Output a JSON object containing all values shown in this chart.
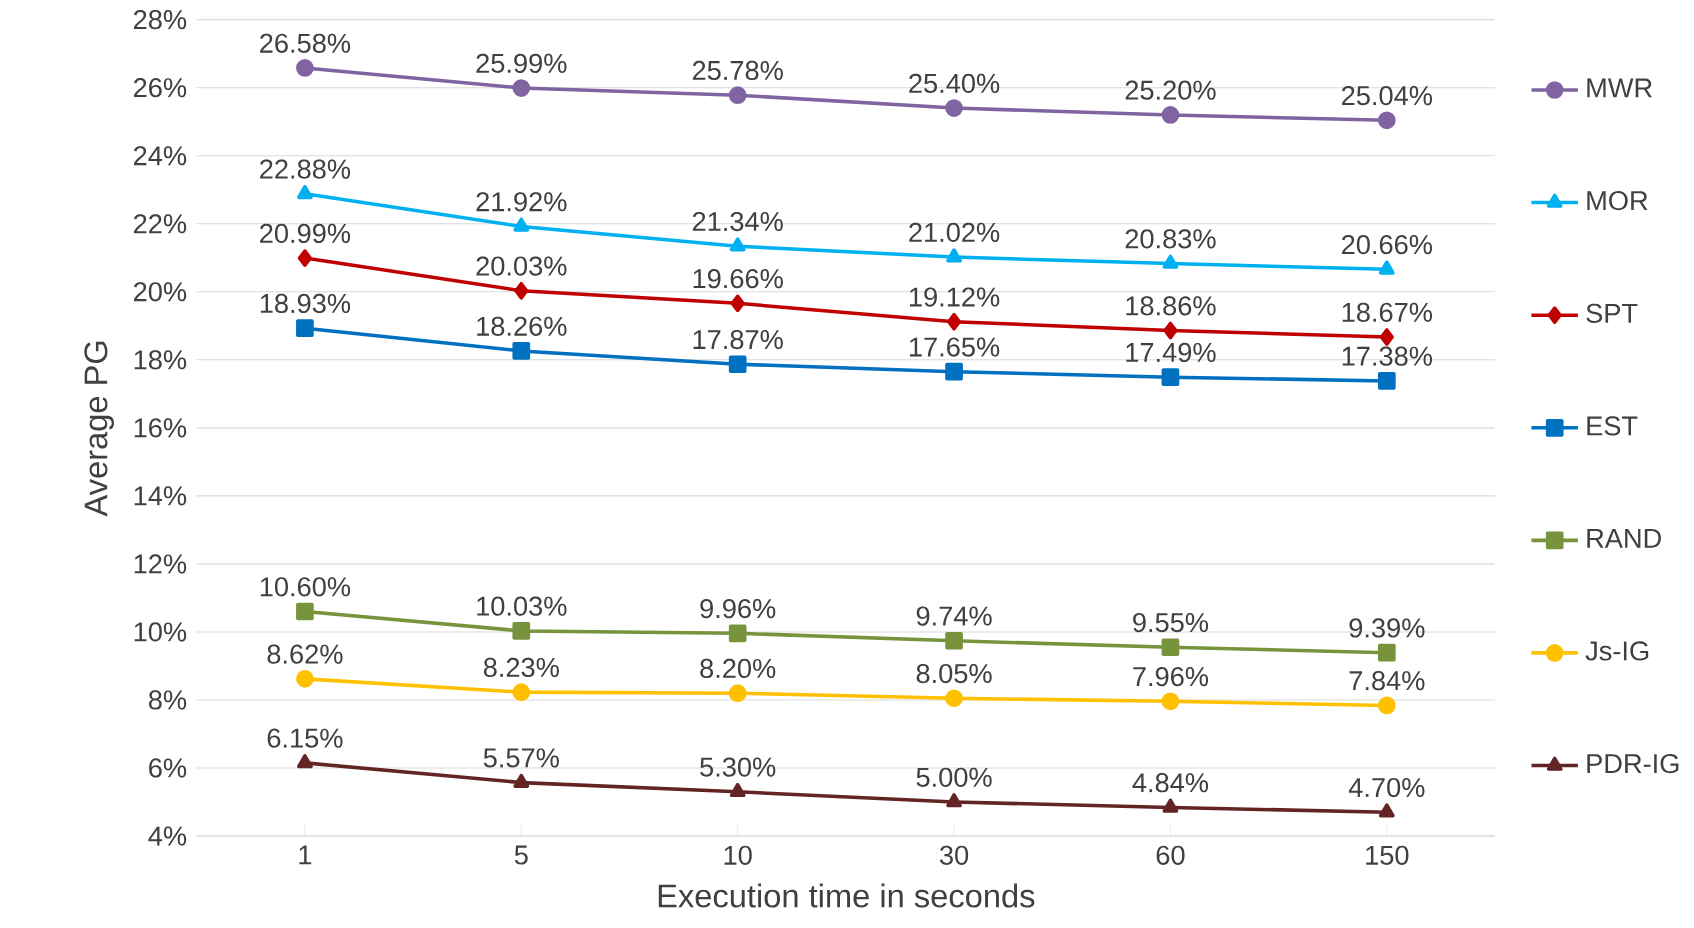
{
  "chart_data": {
    "type": "line",
    "xlabel": "Execution time in seconds",
    "ylabel": "Average PG",
    "categories": [
      "1",
      "5",
      "10",
      "30",
      "60",
      "150"
    ],
    "ylim": [
      4,
      28
    ],
    "yticks": [
      {
        "value": 4,
        "label": "4%"
      },
      {
        "value": 6,
        "label": "6%"
      },
      {
        "value": 8,
        "label": "8%"
      },
      {
        "value": 10,
        "label": "10%"
      },
      {
        "value": 12,
        "label": "12%"
      },
      {
        "value": 14,
        "label": "14%"
      },
      {
        "value": 16,
        "label": "16%"
      },
      {
        "value": 18,
        "label": "18%"
      },
      {
        "value": 20,
        "label": "20%"
      },
      {
        "value": 22,
        "label": "22%"
      },
      {
        "value": 24,
        "label": "24%"
      },
      {
        "value": 26,
        "label": "26%"
      },
      {
        "value": 28,
        "label": "28%"
      }
    ],
    "grid": "y",
    "legend": "right",
    "line_style": "solid",
    "series": [
      {
        "name": "MWR",
        "color": "#8064a2",
        "marker": "circle",
        "values": [
          26.58,
          25.99,
          25.78,
          25.4,
          25.2,
          25.04
        ],
        "value_labels": [
          "26.58%",
          "25.99%",
          "25.78%",
          "25.40%",
          "25.20%",
          "25.04%"
        ]
      },
      {
        "name": "MOR",
        "color": "#00b0f0",
        "marker": "triangle",
        "values": [
          22.88,
          21.92,
          21.34,
          21.02,
          20.83,
          20.66
        ],
        "value_labels": [
          "22.88%",
          "21.92%",
          "21.34%",
          "21.02%",
          "20.83%",
          "20.66%"
        ]
      },
      {
        "name": "SPT",
        "color": "#c00000",
        "marker": "diamond",
        "values": [
          20.99,
          20.03,
          19.66,
          19.12,
          18.86,
          18.67
        ],
        "value_labels": [
          "20.99%",
          "20.03%",
          "19.66%",
          "19.12%",
          "18.86%",
          "18.67%"
        ]
      },
      {
        "name": "EST",
        "color": "#0070c0",
        "marker": "square",
        "values": [
          18.93,
          18.26,
          17.87,
          17.65,
          17.49,
          17.38
        ],
        "value_labels": [
          "18.93%",
          "18.26%",
          "17.87%",
          "17.65%",
          "17.49%",
          "17.38%"
        ]
      },
      {
        "name": "RAND",
        "color": "#77933c",
        "marker": "square",
        "values": [
          10.6,
          10.03,
          9.96,
          9.74,
          9.55,
          9.39
        ],
        "value_labels": [
          "10.60%",
          "10.03%",
          "9.96%",
          "9.74%",
          "9.55%",
          "9.39%"
        ]
      },
      {
        "name": "Js-IG",
        "color": "#ffc000",
        "marker": "circle",
        "values": [
          8.62,
          8.23,
          8.2,
          8.05,
          7.96,
          7.84
        ],
        "value_labels": [
          "8.62%",
          "8.23%",
          "8.20%",
          "8.05%",
          "7.96%",
          "7.84%"
        ]
      },
      {
        "name": "PDR-IG",
        "color": "#632523",
        "marker": "triangle",
        "values": [
          6.15,
          5.57,
          5.3,
          5.0,
          4.84,
          4.7
        ],
        "value_labels": [
          "6.15%",
          "5.57%",
          "5.30%",
          "5.00%",
          "4.84%",
          "4.70%"
        ]
      }
    ]
  }
}
